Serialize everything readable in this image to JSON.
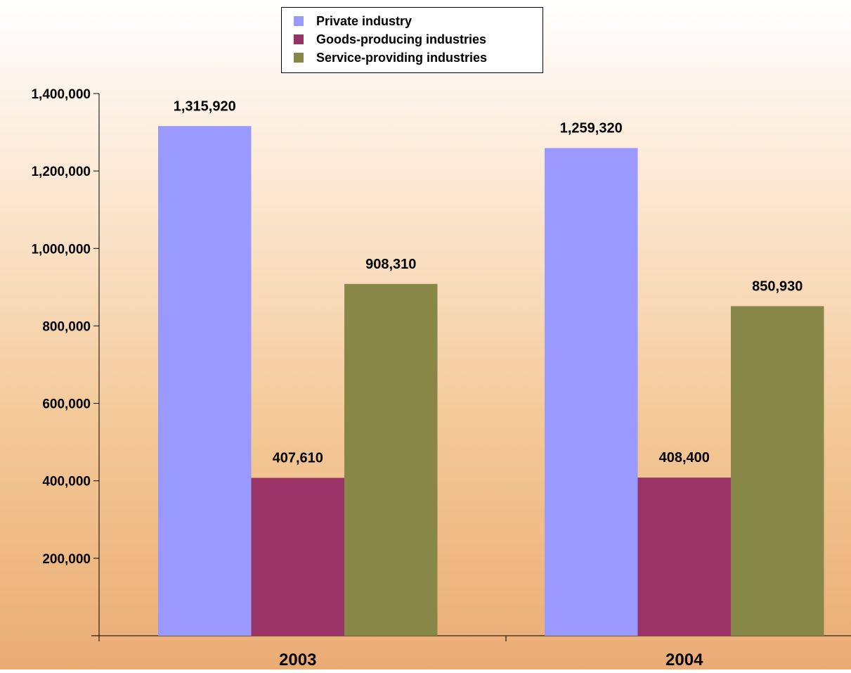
{
  "chart_data": {
    "type": "bar",
    "categories": [
      "2003",
      "2004"
    ],
    "series": [
      {
        "name": "Private industry",
        "color": "#9999ff",
        "values": [
          1315920,
          1259320
        ]
      },
      {
        "name": "Goods-producing industries",
        "color": "#993366",
        "values": [
          407610,
          408400
        ]
      },
      {
        "name": "Service-providing industries",
        "color": "#878747",
        "values": [
          908310,
          850930
        ]
      }
    ],
    "data_labels": [
      [
        "1,315,920",
        "1,259,320"
      ],
      [
        "407,610",
        "408,400"
      ],
      [
        "908,310",
        "850,930"
      ]
    ],
    "yticks": [
      200000,
      400000,
      600000,
      800000,
      1000000,
      1200000,
      1400000
    ],
    "ytick_labels": [
      "200,000",
      "400,000",
      "600,000",
      "800,000",
      "1,000,000",
      "1,200,000",
      "1,400,000"
    ],
    "ylim": [
      0,
      1400000
    ],
    "grid": false,
    "legend_position": "top-center",
    "title": "",
    "xlabel": "",
    "ylabel": ""
  }
}
